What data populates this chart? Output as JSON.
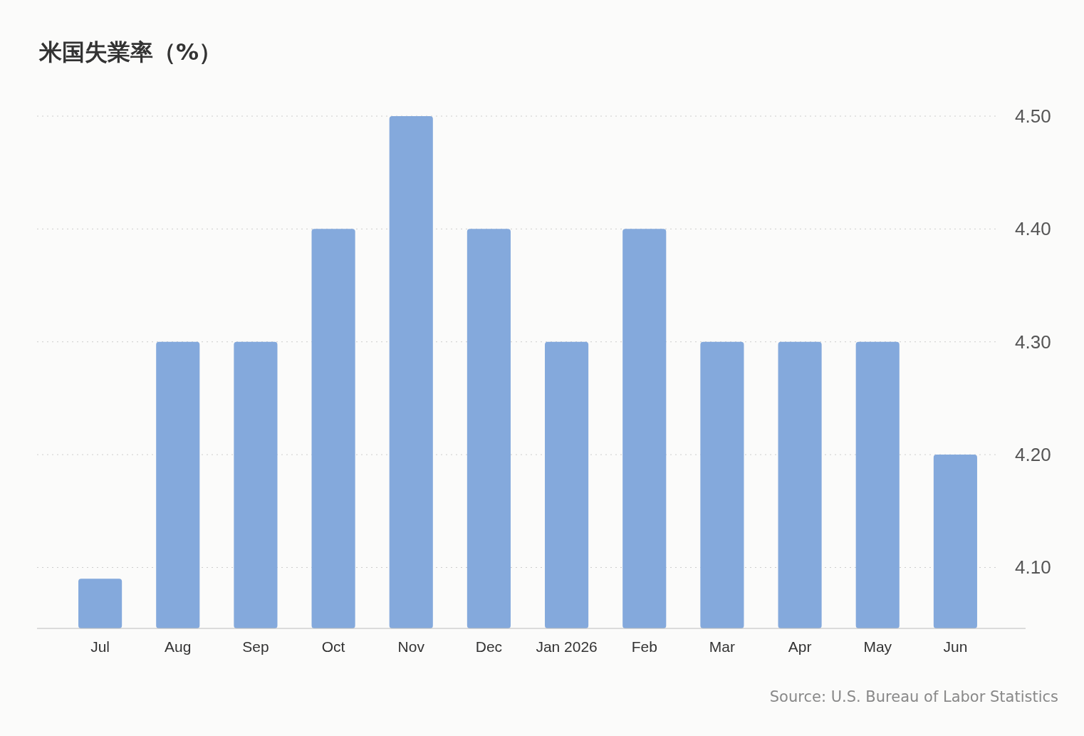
{
  "chart_data": {
    "type": "bar",
    "title": "米国失業率（%）",
    "categories": [
      "Jul",
      "Aug",
      "Sep",
      "Oct",
      "Nov",
      "Dec",
      "Jan 2026",
      "Feb",
      "Mar",
      "Apr",
      "May",
      "Jun"
    ],
    "values": [
      4.09,
      4.3,
      4.3,
      4.4,
      4.5,
      4.4,
      4.3,
      4.4,
      4.3,
      4.3,
      4.3,
      4.2
    ],
    "color": "#84a9dc",
    "ylim": [
      4.046,
      4.5
    ],
    "yticks": [
      {
        "value": 4.1,
        "label": "4.10"
      },
      {
        "value": 4.2,
        "label": "4.20"
      },
      {
        "value": 4.3,
        "label": "4.30"
      },
      {
        "value": 4.4,
        "label": "4.40"
      },
      {
        "value": 4.5,
        "label": "4.50"
      }
    ],
    "grid": "y",
    "annotations": [
      "Source: U.S. Bureau of Labor Statistics"
    ]
  }
}
